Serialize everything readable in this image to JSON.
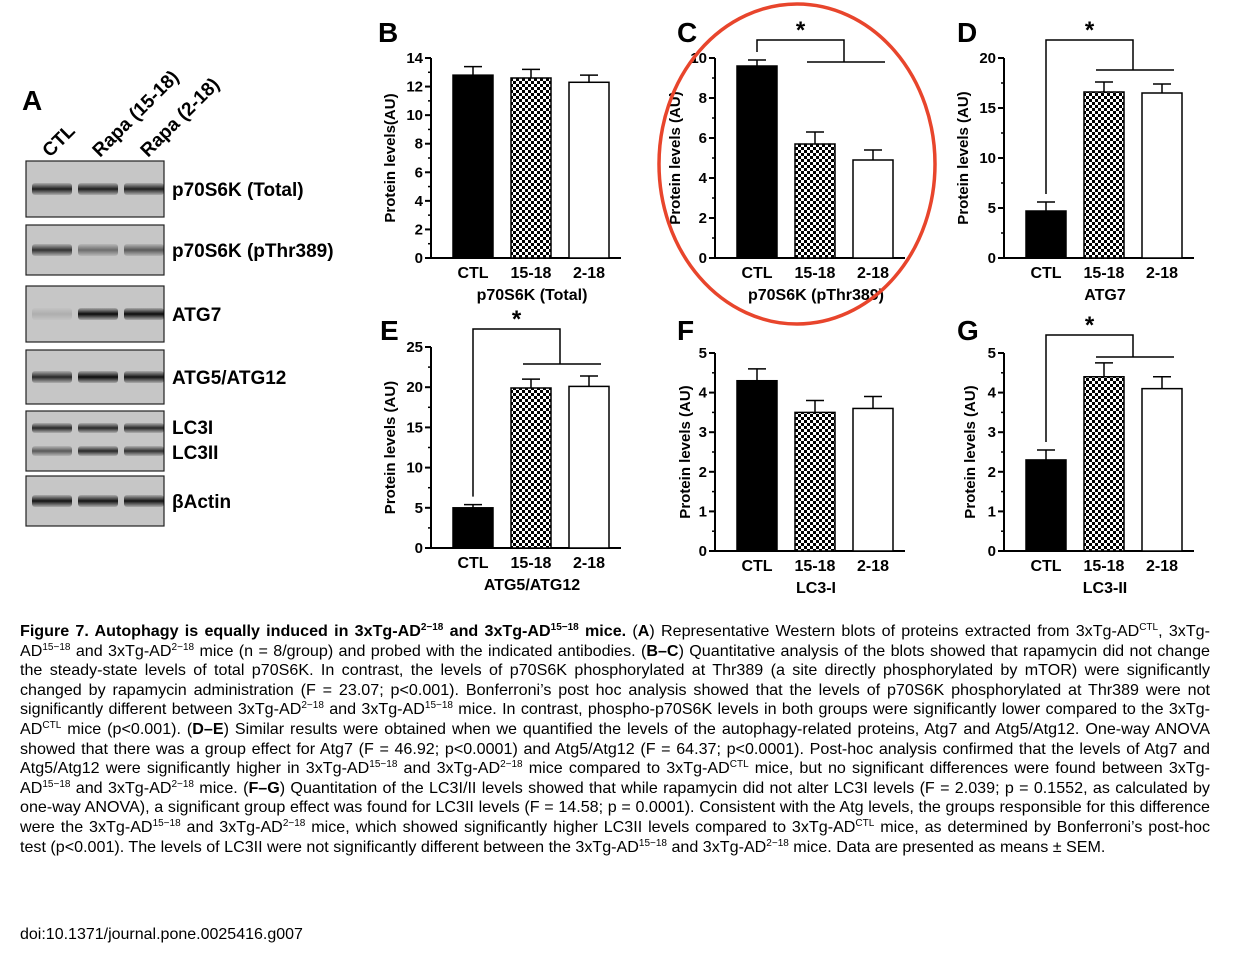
{
  "panel_a": {
    "letter": "A",
    "lanes": [
      "CTL",
      "Rapa (15-18)",
      "Rapa (2-18)"
    ],
    "blots": [
      {
        "label": "p70S6K (Total)",
        "intensity": [
          0.85,
          0.85,
          0.85
        ],
        "double": false
      },
      {
        "label": "p70S6K (pThr389)",
        "intensity": [
          0.75,
          0.45,
          0.55
        ],
        "double": false
      },
      {
        "label": "ATG7",
        "intensity": [
          0.12,
          0.95,
          0.95
        ],
        "double": false
      },
      {
        "label": "ATG5/ATG12",
        "intensity": [
          0.8,
          0.95,
          0.9
        ],
        "double": false
      },
      {
        "label": "LC3I",
        "label2": "LC3II",
        "intensity": [
          0.8,
          0.8,
          0.8
        ],
        "intensity2": [
          0.55,
          0.8,
          0.75
        ],
        "double": true
      },
      {
        "label": "βActin",
        "intensity": [
          0.9,
          0.9,
          0.9
        ],
        "double": false
      }
    ]
  },
  "chart_data": [
    {
      "panel": "B",
      "type": "bar",
      "ylabel": "Protein levels(AU)",
      "xtitle": "p70S6K (Total)",
      "categories": [
        "CTL",
        "15-18",
        "2-18"
      ],
      "values": [
        12.8,
        12.6,
        12.3
      ],
      "errors": [
        0.6,
        0.6,
        0.5
      ],
      "ylim": [
        0,
        14
      ],
      "yticks": [
        0,
        2,
        4,
        6,
        8,
        10,
        12,
        14
      ],
      "significance": ""
    },
    {
      "panel": "C",
      "type": "bar",
      "ylabel": "Protein levels (AU)",
      "xtitle": "p70S6K (pThr389)",
      "categories": [
        "CTL",
        "15-18",
        "2-18"
      ],
      "values": [
        9.6,
        5.7,
        4.9
      ],
      "errors": [
        0.3,
        0.6,
        0.5
      ],
      "ylim": [
        0,
        10
      ],
      "yticks": [
        0,
        2,
        4,
        6,
        8,
        10
      ],
      "significance": "*",
      "highlighted": true
    },
    {
      "panel": "D",
      "type": "bar",
      "ylabel": "Protein levels (AU)",
      "xtitle": "ATG7",
      "categories": [
        "CTL",
        "15-18",
        "2-18"
      ],
      "values": [
        4.7,
        16.6,
        16.5
      ],
      "errors": [
        0.9,
        1.0,
        0.9
      ],
      "ylim": [
        0,
        20
      ],
      "yticks": [
        0,
        5,
        10,
        15,
        20
      ],
      "significance": "*"
    },
    {
      "panel": "E",
      "type": "bar",
      "ylabel": "Protein levels (AU)",
      "xtitle": "ATG5/ATG12",
      "categories": [
        "CTL",
        "15-18",
        "2-18"
      ],
      "values": [
        5.0,
        19.9,
        20.1
      ],
      "errors": [
        0.4,
        1.1,
        1.3
      ],
      "ylim": [
        0,
        25
      ],
      "yticks": [
        0,
        5,
        10,
        15,
        20,
        25
      ],
      "significance": "*"
    },
    {
      "panel": "F",
      "type": "bar",
      "ylabel": "Protein levels (AU)",
      "xtitle": "LC3-I",
      "categories": [
        "CTL",
        "15-18",
        "2-18"
      ],
      "values": [
        4.3,
        3.5,
        3.6
      ],
      "errors": [
        0.3,
        0.3,
        0.3
      ],
      "ylim": [
        0,
        5
      ],
      "yticks": [
        0,
        1,
        2,
        3,
        4,
        5
      ],
      "significance": ""
    },
    {
      "panel": "G",
      "type": "bar",
      "ylabel": "Protein levels (AU)",
      "xtitle": "LC3-II",
      "categories": [
        "CTL",
        "15-18",
        "2-18"
      ],
      "values": [
        2.3,
        4.4,
        4.1
      ],
      "errors": [
        0.25,
        0.35,
        0.3
      ],
      "ylim": [
        0,
        5
      ],
      "yticks": [
        0,
        1,
        2,
        3,
        4,
        5
      ],
      "significance": "*"
    }
  ],
  "colors": {
    "bar_ctl": "#000000",
    "bar_1518": "checkered",
    "bar_218": "#ffffff",
    "highlight": "#e8452c"
  },
  "caption": {
    "title_1": "Figure 7. Autophagy is equally induced in 3xTg-AD",
    "title_sup1": "2−18",
    "title_2": " and 3xTg-AD",
    "title_sup2": "15−18",
    "title_3": " mice.",
    "s1a": " (",
    "s1b": "A",
    "s1c": ") Representative Western blots of proteins extracted from 3xTg-AD",
    "s1_sup1": "CTL",
    "s1d": ", 3xTg-AD",
    "s1_sup2": "15−18",
    "s1e": " and 3xTg-AD",
    "s1_sup3": "2−18",
    "s1f": " mice (n = 8/group) and probed with the indicated antibodies. (",
    "s2a": "B–C",
    "s2b": ") Quantitative analysis of the blots showed that rapamycin did not change the steady-state levels of total p70S6K. In contrast, the levels of p70S6K phosphorylated at Thr389 (a site directly phosphorylated by mTOR) were significantly changed by rapamycin administration (F = 23.07; p<0.001). Bonferroni’s post hoc analysis showed that the levels of p70S6K phosphorylated at Thr389 were not significantly different between 3xTg-AD",
    "s2_sup1": "2−18",
    "s2c": " and 3xTg-AD",
    "s2_sup2": "15−18",
    "s2d": " mice. In contrast, phospho-p70S6K levels in both groups were significantly lower compared to the 3xTg-AD",
    "s2_sup3": "CTL",
    "s2e": " mice (p<0.001). (",
    "s3a": "D–E",
    "s3b": ") Similar results were obtained when we quantified the levels of the autophagy-related proteins, Atg7 and Atg5/Atg12. One-way ANOVA showed that there was a group effect for Atg7 (F = 46.92; p<0.0001) and Atg5/Atg12 (F = 64.37; p<0.0001). Post-hoc analysis confirmed that the levels of Atg7 and Atg5/Atg12 were significantly higher in 3xTg-AD",
    "s3_sup1": "15−18",
    "s3c": " and 3xTg-AD",
    "s3_sup2": "2−18",
    "s3d": " mice compared to 3xTg-AD",
    "s3_sup3": "CTL",
    "s3e": " mice, but no significant differences were found between 3xTg-AD",
    "s3_sup4": "15−18",
    "s3f": " and 3xTg-AD",
    "s3_sup5": "2−18",
    "s3g": " mice. (",
    "s4a": "F–G",
    "s4b": ") Quantitation of the LC3I/II levels showed that while rapamycin did not alter LC3I levels (F = 2.039; p = 0.1552, as calculated by one-way ANOVA), a significant group effect was found for LC3II levels (F = 14.58; p = 0.0001). Consistent with the Atg levels, the groups responsible for this difference were the 3xTg-AD",
    "s4_sup1": "15−18",
    "s4c": " and 3xTg-AD",
    "s4_sup2": "2−18",
    "s4d": " mice, which showed significantly higher LC3II levels compared to 3xTg-AD",
    "s4_sup3": "CTL",
    "s4e": " mice, as determined by Bonferroni’s post-hoc test (p<0.001). The levels of LC3II were not significantly different between the 3xTg-AD",
    "s4_sup4": "15−18",
    "s4f": " and 3xTg-AD",
    "s4_sup5": "2−18",
    "s4g": " mice. Data are presented as means ± SEM.",
    "doi": "doi:10.1371/journal.pone.0025416.g007"
  }
}
